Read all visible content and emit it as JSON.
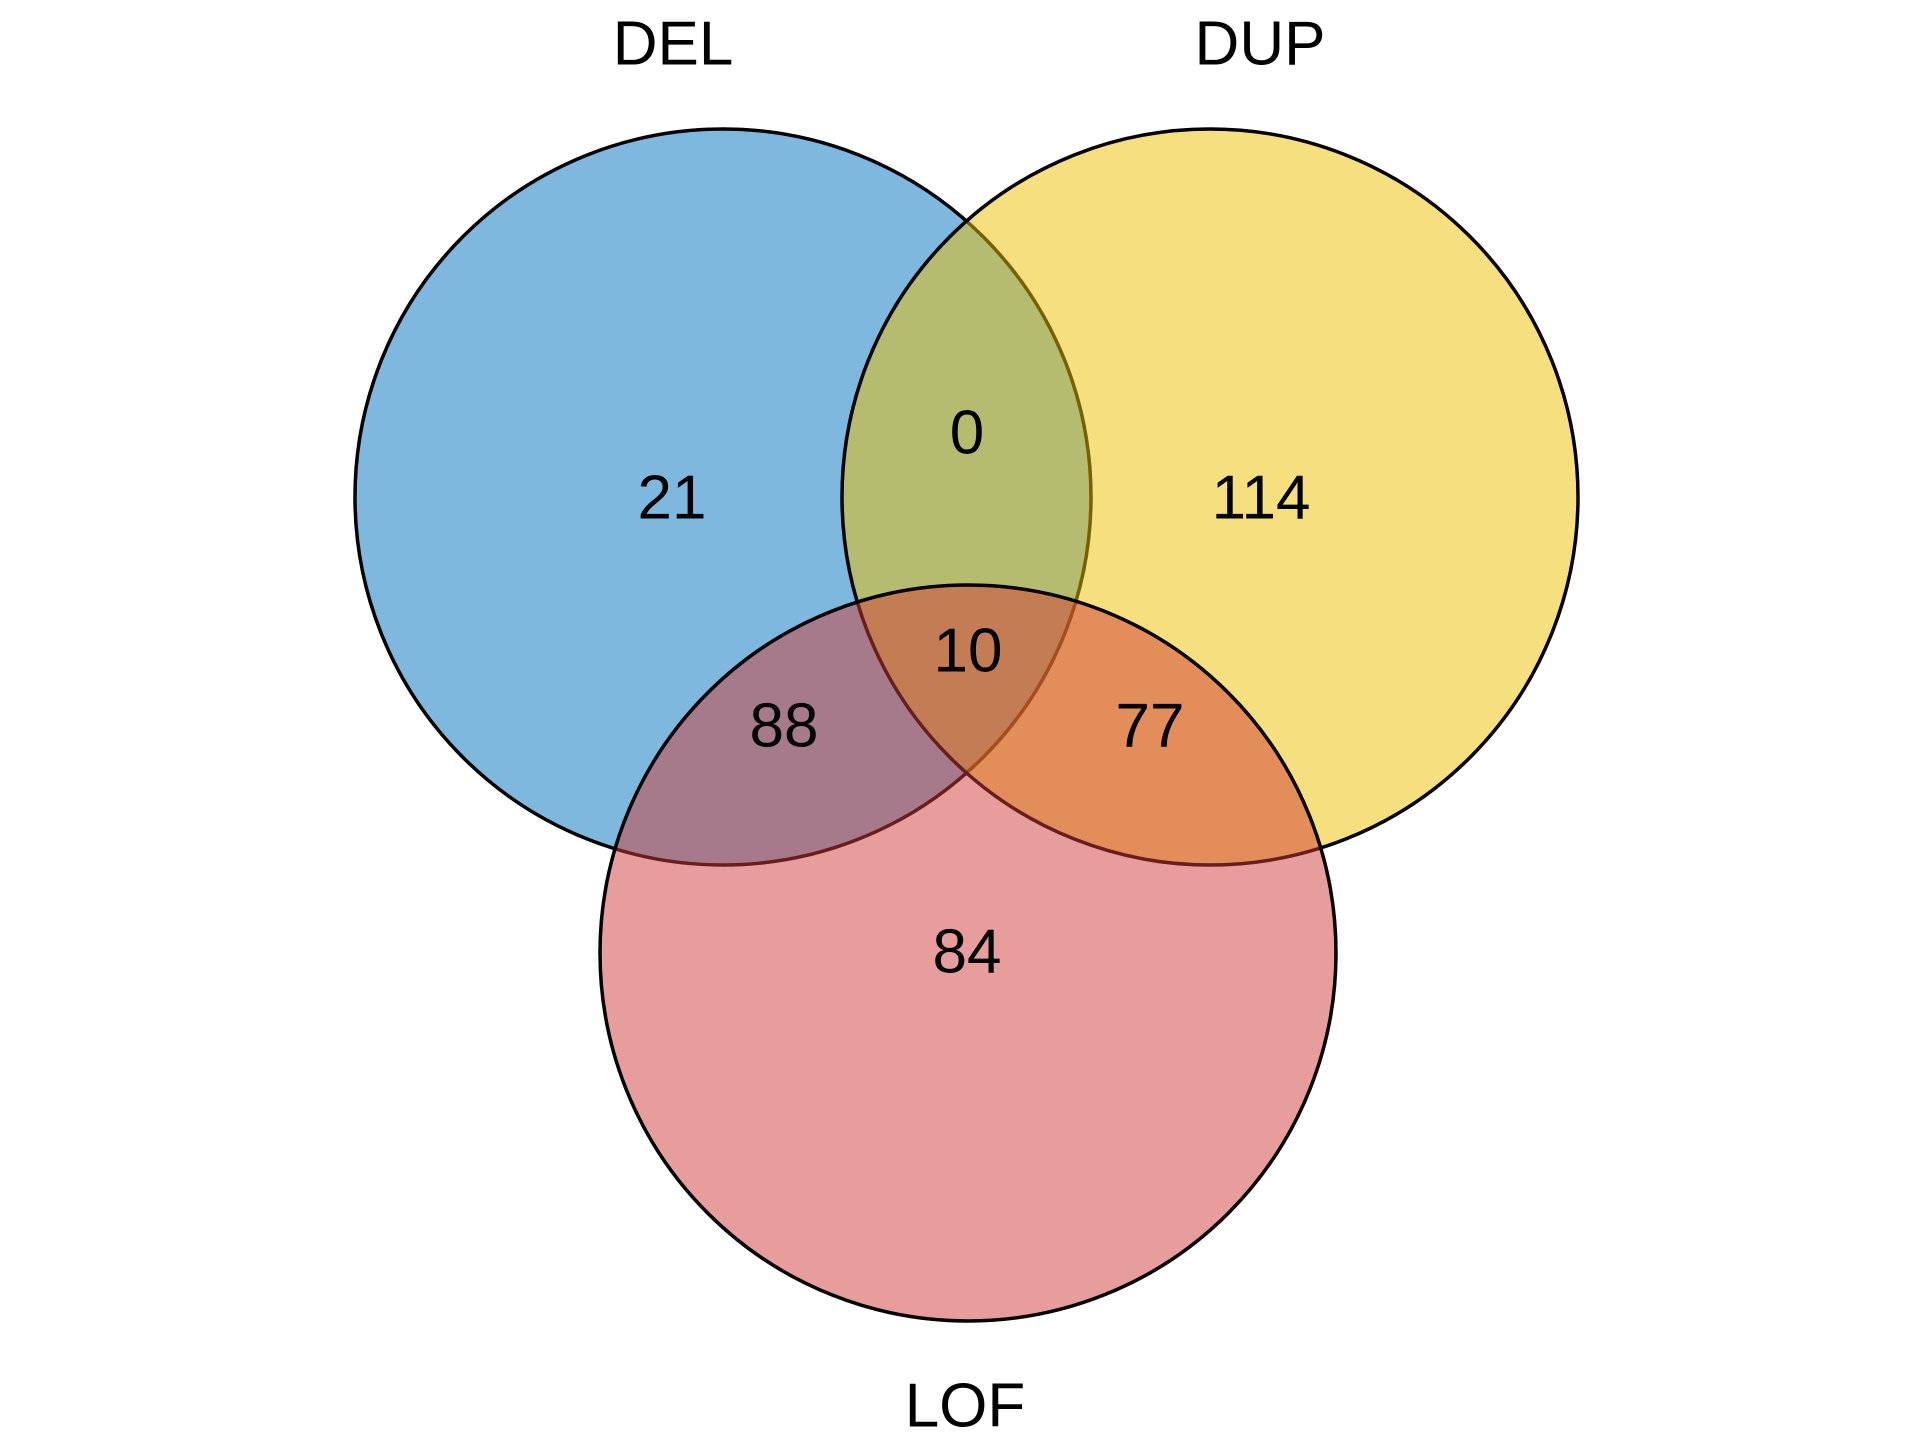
{
  "chart_data": {
    "type": "venn",
    "sets": [
      {
        "name": "DEL",
        "color": "#0072BD"
      },
      {
        "name": "DUP",
        "color": "#EDC000"
      },
      {
        "name": "LOF",
        "color": "#D03C38"
      }
    ],
    "regions": {
      "DEL_only": 21,
      "DUP_only": 114,
      "LOF_only": 84,
      "DEL_DUP": 0,
      "DEL_LOF": 88,
      "DUP_LOF": 77,
      "DEL_DUP_LOF": 10
    }
  }
}
